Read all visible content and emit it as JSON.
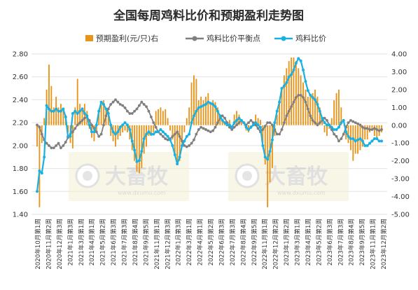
{
  "chart_data": {
    "type": "bar+line",
    "title": "全国每周鸡料比价和预期盈利走势图",
    "legend": [
      {
        "name": "预期盈利(元/只)右",
        "type": "bar",
        "color": "#e8941a"
      },
      {
        "name": "鸡料比价平衡点",
        "type": "line",
        "color": "#7f7f7f"
      },
      {
        "name": "鸡料比价",
        "type": "line",
        "color": "#1ab0e0"
      }
    ],
    "legend_position": "top",
    "y_left": {
      "min": 1.4,
      "max": 2.8,
      "ticks": [
        "1.40",
        "1.60",
        "1.80",
        "2.00",
        "2.20",
        "2.40",
        "2.60",
        "2.80"
      ]
    },
    "y_right": {
      "min": -5,
      "max": 4,
      "ticks": [
        "-5.00",
        "-4.00",
        "-3.00",
        "-2.00",
        "-1.00",
        "0.00",
        "1.00",
        "2.00",
        "3.00",
        "4.00"
      ]
    },
    "grid": true,
    "x_labels": [
      "2020年10月第1周",
      "2020年11月第2周",
      "2020年12月第3周",
      "2021年1月第3周",
      "2021年3月第1周",
      "2021年4月第1周",
      "2021年5月第2周",
      "2021年6月第3周",
      "2021年7月第3周",
      "2021年8月第4周",
      "2021年9月第5周",
      "2021年11月第1周",
      "2021年12月第3周",
      "2022年1月第3周",
      "2022年3月第1周",
      "2022年4月第1周",
      "2022年5月第2周",
      "2022年6月第3周",
      "2022年7月第3周",
      "2022年8月第4周",
      "2022年9月第5周",
      "2022年11月第1周",
      "2022年12月第2周",
      "2023年1月第2周",
      "2023年3月第1周",
      "2023年4月第1周",
      "2023年5月第2周",
      "2023年6月第3周",
      "2023年7月第3周",
      "2023年8月第4周",
      "2023年9月第5周",
      "2023年11月第1周",
      "2023年12月第2周"
    ],
    "series": [
      {
        "name": "鸡料比价平衡点",
        "axis": "left",
        "values": [
          2.18,
          2.16,
          2.1,
          2.05,
          2.02,
          2.0,
          1.98,
          1.98,
          2.0,
          2.02,
          1.98,
          2.0,
          2.03,
          2.07,
          2.1,
          2.12,
          2.15,
          2.18,
          2.2,
          2.22,
          2.24,
          2.25,
          2.22,
          2.18,
          2.15,
          2.12,
          2.08,
          2.1,
          2.18,
          2.26,
          2.32,
          2.36,
          2.38,
          2.4,
          2.38,
          2.36,
          2.35,
          2.33,
          2.3,
          2.28,
          2.28,
          2.3,
          2.32,
          2.35,
          2.38,
          2.36,
          2.34,
          2.3,
          2.25,
          2.2,
          2.16,
          2.12,
          2.1,
          2.08,
          2.06,
          2.05,
          2.06,
          2.08,
          2.1,
          2.12,
          2.08,
          2.04,
          2.0,
          1.99,
          2.0,
          2.02,
          2.05,
          2.1,
          2.14,
          2.16,
          2.15,
          2.14,
          2.13,
          2.12,
          2.13,
          2.16,
          2.2,
          2.24,
          2.26,
          2.24,
          2.2,
          2.16,
          2.14,
          2.16,
          2.18,
          2.2,
          2.22,
          2.2,
          2.18,
          2.2,
          2.22,
          2.2,
          2.18,
          2.15,
          2.12,
          2.14,
          2.17,
          2.2,
          2.2,
          2.18,
          2.14,
          2.1,
          2.1,
          2.14,
          2.2,
          2.26,
          2.3,
          2.34,
          2.38,
          2.42,
          2.44,
          2.44,
          2.42,
          2.38,
          2.32,
          2.26,
          2.22,
          2.2,
          2.18,
          2.2,
          2.22,
          2.24,
          2.22,
          2.18,
          2.14,
          2.1,
          2.08,
          2.04,
          2.06,
          2.1,
          2.16,
          2.2,
          2.22,
          2.21,
          2.2,
          2.19,
          2.18,
          2.16,
          2.15,
          2.15,
          2.14,
          2.14,
          2.15,
          2.14,
          2.13,
          2.14
        ]
      },
      {
        "name": "鸡料比价",
        "axis": "left",
        "values": [
          1.6,
          1.78,
          1.76,
          1.9,
          2.35,
          2.32,
          2.3,
          2.3,
          2.32,
          2.3,
          2.3,
          2.32,
          2.25,
          2.08,
          2.08,
          2.28,
          2.3,
          2.28,
          2.3,
          2.32,
          2.28,
          2.26,
          2.18,
          2.12,
          2.12,
          2.18,
          2.3,
          2.38,
          2.36,
          2.32,
          2.28,
          2.18,
          2.12,
          2.1,
          2.12,
          2.16,
          2.18,
          2.2,
          2.18,
          2.14,
          2.04,
          1.96,
          1.86,
          1.87,
          1.95,
          2.06,
          2.1,
          2.12,
          2.1,
          2.1,
          2.12,
          2.12,
          2.14,
          2.12,
          2.1,
          2.08,
          2.05,
          2.0,
          1.92,
          1.84,
          1.9,
          2.0,
          2.04,
          2.08,
          2.1,
          2.2,
          2.26,
          2.3,
          2.33,
          2.34,
          2.35,
          2.36,
          2.38,
          2.37,
          2.36,
          2.34,
          2.3,
          2.26,
          2.22,
          2.2,
          2.18,
          2.18,
          2.16,
          2.2,
          2.22,
          2.24,
          2.22,
          2.2,
          2.16,
          2.14,
          2.16,
          2.18,
          2.2,
          2.18,
          2.16,
          2.0,
          1.9,
          1.88,
          1.95,
          2.05,
          2.2,
          2.3,
          2.38,
          2.5,
          2.52,
          2.55,
          2.6,
          2.62,
          2.66,
          2.72,
          2.76,
          2.74,
          2.66,
          2.56,
          2.48,
          2.44,
          2.42,
          2.4,
          2.36,
          2.3,
          2.24,
          2.2,
          2.18,
          2.18,
          2.16,
          2.14,
          2.14,
          2.16,
          2.2,
          2.22,
          2.12,
          2.08,
          2.06,
          2.06,
          2.04,
          2.05,
          2.06,
          2.04,
          2.0,
          2.0,
          2.02,
          2.04,
          2.06,
          2.06,
          2.04,
          2.04
        ]
      },
      {
        "name": "预期盈利(元/只)右",
        "axis": "right",
        "values": [
          -1.2,
          -4.6,
          -1.0,
          0.4,
          2.0,
          3.4,
          2.2,
          1.0,
          1.6,
          1.0,
          1.2,
          0.8,
          0.6,
          -0.4,
          -1.0,
          -1.3,
          1.0,
          2.6,
          1.2,
          1.0,
          1.2,
          0.8,
          -0.2,
          -0.7,
          -0.9,
          -0.4,
          0.9,
          1.2,
          1.4,
          1.0,
          0.8,
          -0.6,
          -0.9,
          -1.2,
          -0.8,
          -0.6,
          -0.4,
          -0.3,
          -0.4,
          -0.8,
          -1.4,
          -2.0,
          -2.6,
          -2.7,
          -2.4,
          -1.6,
          -1.2,
          -0.6,
          -0.6,
          -0.4,
          0.8,
          0.9,
          1.0,
          0.8,
          0.9,
          0.4,
          -0.3,
          -0.8,
          -1.6,
          -2.2,
          -2.0,
          -1.2,
          -0.4,
          0.4,
          1.0,
          2.4,
          2.8,
          2.6,
          1.4,
          1.6,
          1.4,
          1.6,
          1.8,
          1.2,
          1.4,
          1.3,
          1.0,
          0.6,
          0.3,
          0.2,
          0.2,
          0.3,
          0.0,
          0.6,
          0.8,
          0.6,
          0.2,
          0.0,
          -0.3,
          -0.4,
          -0.2,
          0.2,
          0.6,
          0.4,
          0.3,
          -1.0,
          -2.2,
          -4.6,
          -3.2,
          -2.4,
          -0.6,
          0.6,
          1.4,
          2.0,
          2.8,
          3.2,
          3.6,
          3.8,
          3.8,
          3.6,
          3.2,
          2.8,
          2.4,
          2.0,
          1.6,
          1.6,
          1.8,
          2.0,
          1.6,
          1.0,
          0.2,
          -0.4,
          -0.6,
          -0.2,
          0.4,
          1.4,
          1.8,
          2.0,
          1.0,
          0.0,
          -0.8,
          -1.0,
          -1.4,
          -2.0,
          -1.6,
          -1.6,
          -1.4,
          -1.2,
          -0.8,
          -0.8,
          -0.4,
          -0.2,
          -0.6,
          -0.8,
          -0.6,
          -0.4
        ]
      }
    ],
    "watermark_text": "大畜牧",
    "watermark_url": "www.dxumu.com"
  }
}
